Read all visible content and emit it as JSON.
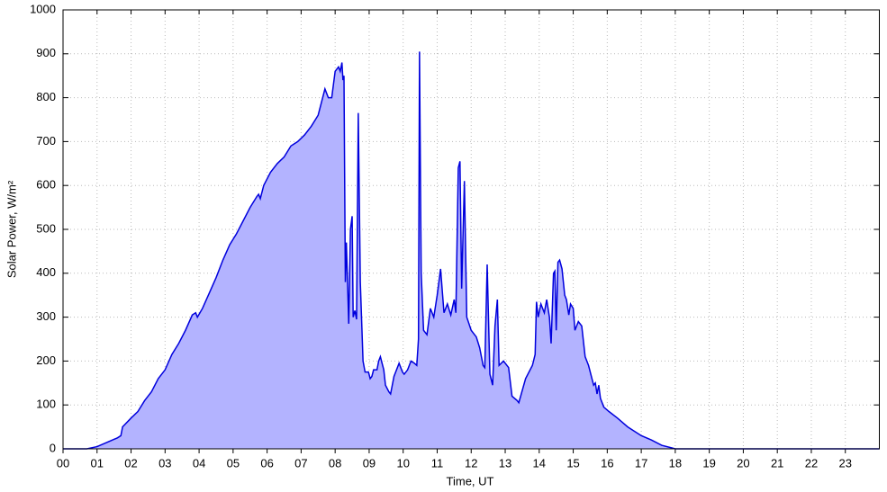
{
  "chart_data": {
    "type": "area",
    "xlabel": "Time, UT",
    "ylabel": "Solar Power, W/m²",
    "x": [
      0,
      0.7,
      1,
      1.3,
      1.6,
      1.7,
      1.75,
      2,
      2.2,
      2.4,
      2.6,
      2.8,
      3,
      3.2,
      3.4,
      3.6,
      3.8,
      3.9,
      3.95,
      4.1,
      4.3,
      4.5,
      4.7,
      4.9,
      5.1,
      5.3,
      5.5,
      5.7,
      5.75,
      5.8,
      5.9,
      6.1,
      6.3,
      6.5,
      6.7,
      6.9,
      7.1,
      7.3,
      7.5,
      7.6,
      7.7,
      7.8,
      7.9,
      8,
      8.1,
      8.15,
      8.2,
      8.23,
      8.26,
      8.3,
      8.33,
      8.4,
      8.45,
      8.5,
      8.53,
      8.58,
      8.63,
      8.68,
      8.74,
      8.82,
      8.88,
      8.98,
      9.03,
      9.08,
      9.13,
      9.23,
      9.28,
      9.33,
      9.43,
      9.48,
      9.58,
      9.63,
      9.73,
      9.88,
      9.98,
      10.03,
      10.13,
      10.23,
      10.33,
      10.4,
      10.45,
      10.48,
      10.53,
      10.6,
      10.7,
      10.8,
      10.9,
      11,
      11.1,
      11.2,
      11.3,
      11.4,
      11.5,
      11.55,
      11.62,
      11.67,
      11.72,
      11.8,
      11.87,
      12,
      12.15,
      12.25,
      12.35,
      12.4,
      12.47,
      12.55,
      12.63,
      12.7,
      12.77,
      12.82,
      12.95,
      13.1,
      13.2,
      13.35,
      13.4,
      13.6,
      13.8,
      13.88,
      13.92,
      13.97,
      14.05,
      14.15,
      14.22,
      14.3,
      14.35,
      14.42,
      14.46,
      14.5,
      14.55,
      14.6,
      14.67,
      14.75,
      14.8,
      14.87,
      14.92,
      15,
      15.05,
      15.15,
      15.25,
      15.35,
      15.45,
      15.55,
      15.6,
      15.65,
      15.7,
      15.75,
      15.8,
      15.9,
      16.05,
      16.3,
      16.6,
      17,
      17.3,
      17.6,
      17.9,
      18,
      24
    ],
    "series": [
      {
        "name": "Solar Power",
        "color": "#0000dd",
        "fill": "#b3b3ff",
        "values": [
          0,
          0,
          5,
          15,
          25,
          30,
          50,
          70,
          85,
          110,
          130,
          160,
          180,
          215,
          240,
          270,
          305,
          310,
          300,
          320,
          355,
          390,
          430,
          465,
          490,
          520,
          550,
          575,
          580,
          570,
          600,
          630,
          650,
          665,
          690,
          700,
          715,
          735,
          760,
          790,
          820,
          800,
          800,
          860,
          870,
          860,
          880,
          840,
          850,
          380,
          470,
          285,
          500,
          530,
          300,
          315,
          295,
          765,
          380,
          200,
          175,
          175,
          160,
          165,
          180,
          180,
          200,
          210,
          180,
          145,
          130,
          125,
          165,
          195,
          175,
          170,
          180,
          200,
          195,
          190,
          250,
          905,
          400,
          270,
          260,
          320,
          300,
          350,
          410,
          310,
          330,
          305,
          340,
          310,
          640,
          655,
          365,
          610,
          300,
          270,
          255,
          230,
          190,
          185,
          420,
          170,
          145,
          280,
          340,
          190,
          200,
          185,
          120,
          110,
          105,
          160,
          190,
          215,
          335,
          300,
          330,
          310,
          340,
          300,
          240,
          400,
          405,
          270,
          425,
          430,
          410,
          350,
          340,
          305,
          330,
          320,
          270,
          290,
          280,
          210,
          190,
          160,
          145,
          150,
          125,
          145,
          115,
          95,
          85,
          70,
          50,
          30,
          20,
          8,
          2,
          0,
          0
        ]
      }
    ],
    "xlim": [
      0,
      24
    ],
    "ylim": [
      0,
      1000
    ],
    "xticks": [
      {
        "value": 0,
        "label": "00"
      },
      {
        "value": 1,
        "label": "01"
      },
      {
        "value": 2,
        "label": "02"
      },
      {
        "value": 3,
        "label": "03"
      },
      {
        "value": 4,
        "label": "04"
      },
      {
        "value": 5,
        "label": "05"
      },
      {
        "value": 6,
        "label": "06"
      },
      {
        "value": 7,
        "label": "07"
      },
      {
        "value": 8,
        "label": "08"
      },
      {
        "value": 9,
        "label": "09"
      },
      {
        "value": 10,
        "label": "10"
      },
      {
        "value": 11,
        "label": "11"
      },
      {
        "value": 12,
        "label": "12"
      },
      {
        "value": 13,
        "label": "13"
      },
      {
        "value": 14,
        "label": "14"
      },
      {
        "value": 15,
        "label": "15"
      },
      {
        "value": 16,
        "label": "16"
      },
      {
        "value": 17,
        "label": "17"
      },
      {
        "value": 18,
        "label": "18"
      },
      {
        "value": 19,
        "label": "19"
      },
      {
        "value": 20,
        "label": "20"
      },
      {
        "value": 21,
        "label": "21"
      },
      {
        "value": 22,
        "label": "22"
      },
      {
        "value": 23,
        "label": "23"
      }
    ],
    "yticks": [
      0,
      100,
      200,
      300,
      400,
      500,
      600,
      700,
      800,
      900,
      1000
    ],
    "grid": true
  }
}
